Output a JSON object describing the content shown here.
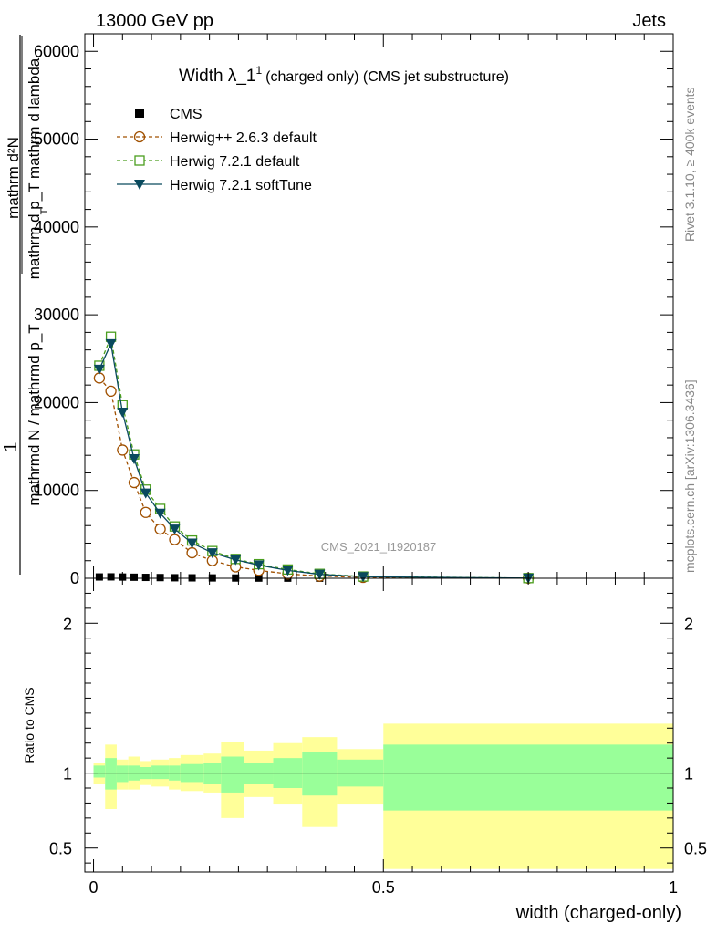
{
  "header": {
    "left": "13000 GeV pp",
    "right": "Jets"
  },
  "side_text": {
    "rivet": "Rivet 3.1.10, ≥ 400k events",
    "mcplots": "mcplots.cern.ch [arXiv:1306.3436]"
  },
  "chart_data": {
    "type": "line",
    "title_main": "Width λ_1",
    "title_sup": "1",
    "title_rest": "(charged only) (CMS jet substructure)",
    "analysis_label": "CMS_2021_I1920187",
    "xlabel": "width (charged-only)",
    "ylabel": {
      "numerator": "1",
      "denominator": "mathrmd N / mathrmd p_T",
      "numerator2": "mathrm d²N",
      "denominator2": "mathrm d p_T mathrm d lambda",
      "subscript": "T"
    },
    "xlim": [
      -0.015,
      1.0
    ],
    "ylim": [
      0,
      62000
    ],
    "y_ticks": [
      0,
      10000,
      20000,
      30000,
      40000,
      50000,
      60000
    ],
    "y_tick_labels": [
      "0",
      "10000",
      "20000",
      "30000",
      "40000",
      "50000",
      "60000"
    ],
    "x_ticks": [
      0,
      0.5,
      1
    ],
    "x_tick_labels": [
      "0",
      "0.5",
      "1"
    ],
    "series": [
      {
        "name": "CMS",
        "color": "#000000",
        "marker": "square",
        "x": [
          0.01,
          0.03,
          0.05,
          0.07,
          0.09,
          0.115,
          0.14,
          0.17,
          0.205,
          0.245,
          0.285,
          0.335,
          0.39,
          0.465,
          0.75
        ],
        "y": [
          150,
          160,
          140,
          120,
          100,
          80,
          60,
          50,
          40,
          30,
          20,
          15,
          10,
          5,
          1
        ]
      },
      {
        "name": "Herwig++ 2.6.3 default",
        "color": "#a05000",
        "marker": "circle",
        "dash": "dashed",
        "x": [
          0.01,
          0.03,
          0.05,
          0.07,
          0.09,
          0.115,
          0.14,
          0.17,
          0.205,
          0.245,
          0.285,
          0.335,
          0.39,
          0.465,
          0.75
        ],
        "y": [
          22800,
          21300,
          14600,
          10900,
          7500,
          5600,
          4400,
          2900,
          2000,
          1300,
          900,
          500,
          250,
          100,
          10
        ]
      },
      {
        "name": "Herwig 7.2.1 default",
        "color": "#4a9e1e",
        "marker": "square-open",
        "dash": "dashed",
        "x": [
          0.01,
          0.03,
          0.05,
          0.07,
          0.09,
          0.115,
          0.14,
          0.17,
          0.205,
          0.245,
          0.285,
          0.335,
          0.39,
          0.465,
          0.75
        ],
        "y": [
          24200,
          27500,
          19700,
          14100,
          10100,
          7900,
          5900,
          4300,
          3100,
          2200,
          1600,
          1000,
          500,
          200,
          20
        ]
      },
      {
        "name": "Herwig 7.2.1 softTune",
        "color": "#0a4a5e",
        "marker": "triangle-down",
        "dash": "solid",
        "x": [
          0.01,
          0.03,
          0.05,
          0.07,
          0.09,
          0.115,
          0.14,
          0.17,
          0.205,
          0.245,
          0.285,
          0.335,
          0.39,
          0.465,
          0.75
        ],
        "y": [
          23800,
          26700,
          18900,
          13600,
          9700,
          7400,
          5600,
          4000,
          2900,
          2100,
          1500,
          900,
          450,
          180,
          18
        ]
      }
    ],
    "ratio": {
      "ylabel": "Ratio to CMS",
      "ylim": [
        0.34,
        2.3
      ],
      "y_ticks": [
        0.5,
        1,
        2
      ],
      "y_tick_labels": [
        "0.5",
        "1",
        "2"
      ],
      "bins": [
        {
          "x0": 0.0,
          "x1": 0.02,
          "g_lo": 0.97,
          "g_hi": 1.05,
          "y_lo": 0.93,
          "y_hi": 1.07
        },
        {
          "x0": 0.02,
          "x1": 0.04,
          "g_lo": 0.89,
          "g_hi": 1.1,
          "y_lo": 0.76,
          "y_hi": 1.19
        },
        {
          "x0": 0.04,
          "x1": 0.06,
          "g_lo": 0.94,
          "g_hi": 1.05,
          "y_lo": 0.89,
          "y_hi": 1.09
        },
        {
          "x0": 0.06,
          "x1": 0.08,
          "g_lo": 0.95,
          "g_hi": 1.05,
          "y_lo": 0.89,
          "y_hi": 1.11
        },
        {
          "x0": 0.08,
          "x1": 0.1,
          "g_lo": 0.96,
          "g_hi": 1.04,
          "y_lo": 0.92,
          "y_hi": 1.08
        },
        {
          "x0": 0.1,
          "x1": 0.13,
          "g_lo": 0.96,
          "g_hi": 1.05,
          "y_lo": 0.91,
          "y_hi": 1.09
        },
        {
          "x0": 0.13,
          "x1": 0.15,
          "g_lo": 0.95,
          "g_hi": 1.05,
          "y_lo": 0.89,
          "y_hi": 1.1
        },
        {
          "x0": 0.15,
          "x1": 0.19,
          "g_lo": 0.94,
          "g_hi": 1.06,
          "y_lo": 0.88,
          "y_hi": 1.12
        },
        {
          "x0": 0.19,
          "x1": 0.22,
          "g_lo": 0.93,
          "g_hi": 1.07,
          "y_lo": 0.87,
          "y_hi": 1.13
        },
        {
          "x0": 0.22,
          "x1": 0.26,
          "g_lo": 0.87,
          "g_hi": 1.11,
          "y_lo": 0.7,
          "y_hi": 1.21
        },
        {
          "x0": 0.26,
          "x1": 0.31,
          "g_lo": 0.93,
          "g_hi": 1.07,
          "y_lo": 0.84,
          "y_hi": 1.15
        },
        {
          "x0": 0.31,
          "x1": 0.36,
          "g_lo": 0.9,
          "g_hi": 1.1,
          "y_lo": 0.79,
          "y_hi": 1.2
        },
        {
          "x0": 0.36,
          "x1": 0.42,
          "g_lo": 0.85,
          "g_hi": 1.14,
          "y_lo": 0.64,
          "y_hi": 1.24
        },
        {
          "x0": 0.42,
          "x1": 0.5,
          "g_lo": 0.91,
          "g_hi": 1.09,
          "y_lo": 0.79,
          "y_hi": 1.16
        },
        {
          "x0": 0.5,
          "x1": 1.0,
          "g_lo": 0.75,
          "g_hi": 1.19,
          "y_lo": 0.36,
          "y_hi": 1.33
        }
      ],
      "colors": {
        "inner": "#99ff99",
        "outer": "#ffff99"
      }
    }
  }
}
